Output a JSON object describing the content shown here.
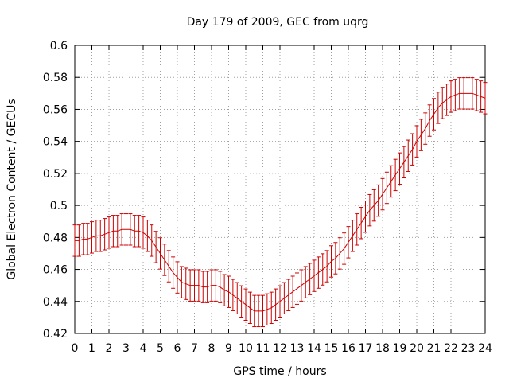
{
  "chart_data": {
    "type": "line",
    "title": "Day 179 of 2009, GEC from uqrg",
    "xlabel": "GPS time / hours",
    "ylabel": "Global Electron Content / GECUs",
    "xlim": [
      0,
      24
    ],
    "ylim": [
      0.42,
      0.6
    ],
    "xticks": [
      0,
      1,
      2,
      3,
      4,
      5,
      6,
      7,
      8,
      9,
      10,
      11,
      12,
      13,
      14,
      15,
      16,
      17,
      18,
      19,
      20,
      21,
      22,
      23,
      24
    ],
    "xtick_labels": [
      "0",
      "1",
      "2",
      "3",
      "4",
      "5",
      "6",
      "7",
      "8",
      "9",
      "10",
      "11",
      "12",
      "13",
      "14",
      "15",
      "16",
      "17",
      "18",
      "19",
      "20",
      "21",
      "22",
      "23",
      "24"
    ],
    "yticks": [
      0.42,
      0.44,
      0.46,
      0.48,
      0.5,
      0.52,
      0.54,
      0.56,
      0.58,
      0.6
    ],
    "ytick_labels": [
      "0.42",
      "0.44",
      "0.46",
      "0.48",
      "0.5",
      "0.52",
      "0.54",
      "0.56",
      "0.58",
      "0.6"
    ],
    "grid": true,
    "color": "#cc0000",
    "error_half_width": 0.0098,
    "series": [
      {
        "name": "GEC",
        "x": [
          0,
          0.25,
          0.5,
          0.75,
          1,
          1.25,
          1.5,
          1.75,
          2,
          2.25,
          2.5,
          2.75,
          3,
          3.25,
          3.5,
          3.75,
          4,
          4.25,
          4.5,
          4.75,
          5,
          5.25,
          5.5,
          5.75,
          6,
          6.25,
          6.5,
          6.75,
          7,
          7.25,
          7.5,
          7.75,
          8,
          8.25,
          8.5,
          8.75,
          9,
          9.25,
          9.5,
          9.75,
          10,
          10.25,
          10.5,
          10.75,
          11,
          11.25,
          11.5,
          11.75,
          12,
          12.25,
          12.5,
          12.75,
          13,
          13.25,
          13.5,
          13.75,
          14,
          14.25,
          14.5,
          14.75,
          15,
          15.25,
          15.5,
          15.75,
          16,
          16.25,
          16.5,
          16.75,
          17,
          17.25,
          17.5,
          17.75,
          18,
          18.25,
          18.5,
          18.75,
          19,
          19.25,
          19.5,
          19.75,
          20,
          20.25,
          20.5,
          20.75,
          21,
          21.25,
          21.5,
          21.75,
          22,
          22.25,
          22.5,
          22.75,
          23,
          23.25,
          23.5,
          23.75,
          24
        ],
        "values": [
          0.478,
          0.478,
          0.479,
          0.479,
          0.48,
          0.481,
          0.481,
          0.482,
          0.483,
          0.484,
          0.484,
          0.485,
          0.485,
          0.485,
          0.484,
          0.484,
          0.483,
          0.481,
          0.478,
          0.474,
          0.47,
          0.466,
          0.462,
          0.458,
          0.455,
          0.452,
          0.451,
          0.45,
          0.45,
          0.45,
          0.449,
          0.449,
          0.45,
          0.45,
          0.449,
          0.447,
          0.446,
          0.444,
          0.442,
          0.44,
          0.438,
          0.436,
          0.434,
          0.434,
          0.434,
          0.435,
          0.436,
          0.438,
          0.44,
          0.442,
          0.444,
          0.446,
          0.448,
          0.45,
          0.452,
          0.454,
          0.456,
          0.458,
          0.46,
          0.462,
          0.465,
          0.467,
          0.47,
          0.473,
          0.477,
          0.481,
          0.485,
          0.489,
          0.493,
          0.497,
          0.5,
          0.503,
          0.507,
          0.511,
          0.515,
          0.519,
          0.523,
          0.527,
          0.531,
          0.535,
          0.54,
          0.544,
          0.548,
          0.553,
          0.557,
          0.561,
          0.564,
          0.566,
          0.568,
          0.569,
          0.57,
          0.57,
          0.57,
          0.57,
          0.569,
          0.568,
          0.567
        ]
      }
    ]
  }
}
